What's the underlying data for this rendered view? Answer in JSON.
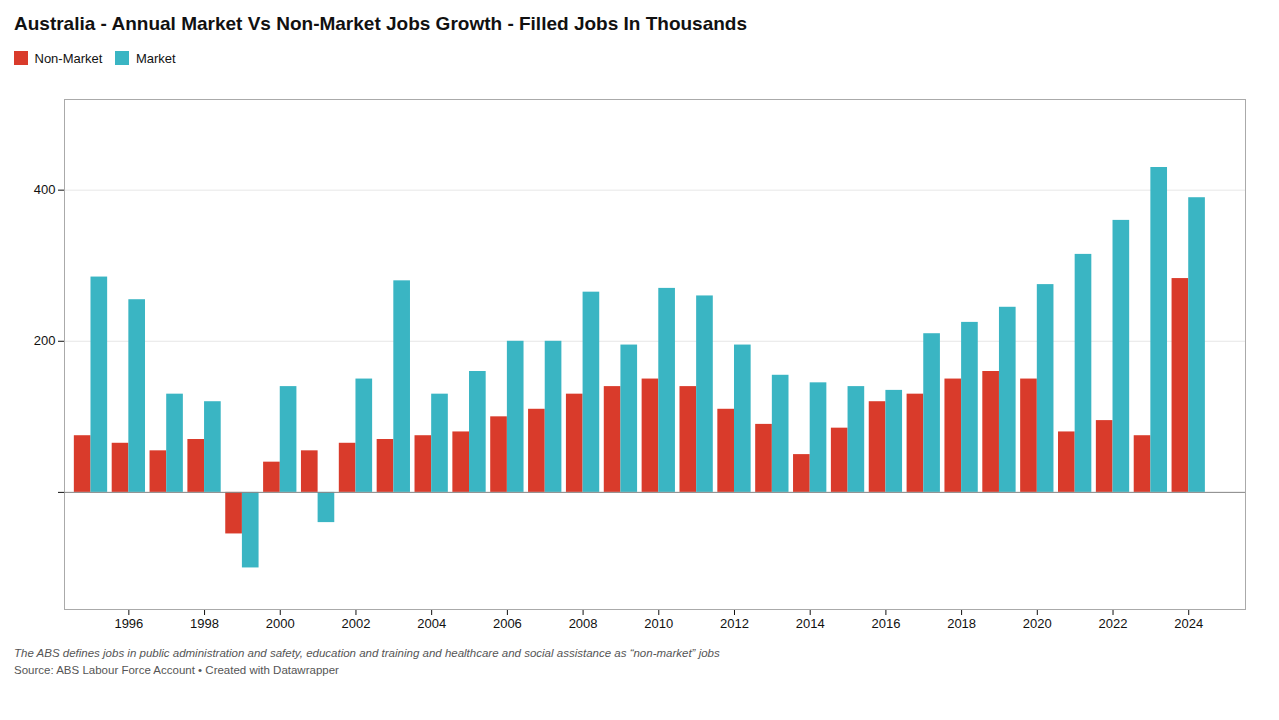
{
  "chart_data": {
    "type": "bar",
    "title": "Australia - Annual Market Vs Non-Market Jobs Growth - Filled Jobs In Thousands",
    "annotations": [
      "The ABS defines jobs in public administration and safety, education and training and healthcare and social assistance as “non-market” jobs",
      "Source: ABS Labour Force Account • Created with Datawrapper"
    ],
    "x": [
      1995,
      1996,
      1997,
      1998,
      1999,
      2000,
      2001,
      2002,
      2003,
      2004,
      2005,
      2006,
      2007,
      2008,
      2009,
      2010,
      2011,
      2012,
      2013,
      2014,
      2015,
      2016,
      2017,
      2018,
      2019,
      2020,
      2021,
      2022,
      2023,
      2024
    ],
    "series": [
      {
        "name": "Non-Market",
        "color": "#d93b2b",
        "values": [
          75,
          65,
          55,
          70,
          -55,
          40,
          55,
          65,
          70,
          75,
          80,
          100,
          110,
          130,
          140,
          150,
          140,
          110,
          90,
          50,
          85,
          120,
          130,
          150,
          160,
          150,
          80,
          95,
          75,
          283
        ]
      },
      {
        "name": "Market",
        "color": "#3ab5c3",
        "values": [
          285,
          255,
          130,
          120,
          -100,
          140,
          -40,
          150,
          280,
          130,
          160,
          200,
          200,
          265,
          195,
          270,
          260,
          195,
          155,
          145,
          140,
          135,
          210,
          225,
          245,
          275,
          315,
          360,
          430,
          390
        ]
      }
    ],
    "xlim": [
      1994.3,
      2025.5
    ],
    "xticks": [
      1996,
      1998,
      2000,
      2002,
      2004,
      2006,
      2008,
      2010,
      2012,
      2014,
      2016,
      2018,
      2020,
      2022,
      2024
    ],
    "ylim": [
      -155,
      520
    ],
    "yticks": [
      {
        "value": 0,
        "label": ""
      },
      200,
      400
    ],
    "grid": true,
    "legend": "top-left"
  }
}
